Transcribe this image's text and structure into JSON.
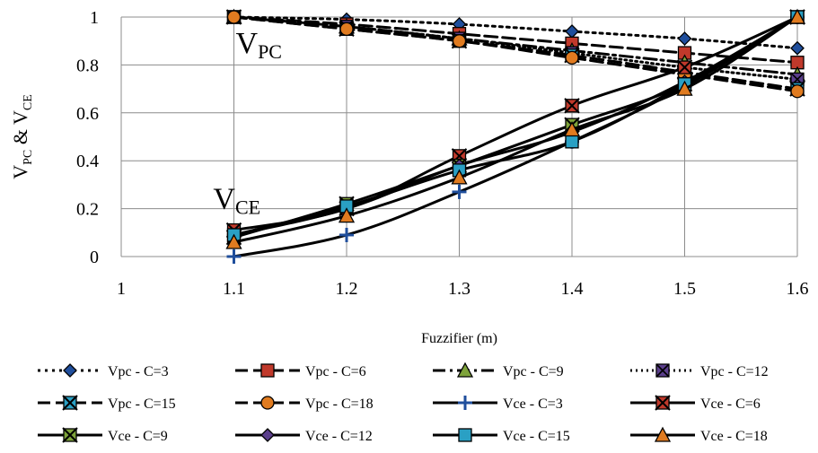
{
  "chart_data": {
    "type": "line",
    "xlabel": "Fuzzifier (m)",
    "ylabel": {
      "base1": "V",
      "sub1": "PC",
      "mid": " & ",
      "base2": "V",
      "sub2": "CE"
    },
    "xlim": [
      1,
      1.6
    ],
    "ylim": [
      0,
      1
    ],
    "x_ticks": [
      "1",
      "1.1",
      "1.2",
      "1.3",
      "1.4",
      "1.5",
      "1.6"
    ],
    "y_ticks": [
      "0",
      "0.2",
      "0.4",
      "0.6",
      "0.8",
      "1"
    ],
    "grid": true,
    "legend_position": "bottom",
    "annotations": [
      {
        "base": "V",
        "sub": "PC",
        "x": 1.1,
        "y": 0.88
      },
      {
        "base": "V",
        "sub": "CE",
        "x": 1.08,
        "y": 0.23
      }
    ],
    "x": [
      1.1,
      1.2,
      1.3,
      1.4,
      1.5,
      1.6
    ],
    "series": [
      {
        "name": "Vpc  - C=3",
        "values": [
          1,
          0.99,
          0.97,
          0.94,
          0.91,
          0.87
        ],
        "dash": "dot",
        "marker": "diamond",
        "marker_color": "#1f4e9c"
      },
      {
        "name": "Vpc  - C=6",
        "values": [
          1,
          0.97,
          0.93,
          0.89,
          0.85,
          0.81
        ],
        "dash": "dash",
        "marker": "square",
        "marker_color": "#c0392b"
      },
      {
        "name": "Vpc  - C=9",
        "values": [
          1,
          0.96,
          0.91,
          0.86,
          0.81,
          0.76
        ],
        "dash": "dashdot",
        "marker": "triangle",
        "marker_color": "#7ea33a"
      },
      {
        "name": "Vpc  - C=12",
        "values": [
          1,
          0.96,
          0.91,
          0.85,
          0.79,
          0.74
        ],
        "dash": "dotted",
        "marker": "xsquare",
        "marker_color": "#5b3f8c"
      },
      {
        "name": "Vpc  - C=15",
        "values": [
          1,
          0.95,
          0.9,
          0.84,
          0.77,
          0.7
        ],
        "dash": "dash",
        "marker": "xstar",
        "marker_color": "#2aa0c4"
      },
      {
        "name": "Vpc  - C=18",
        "values": [
          1,
          0.95,
          0.9,
          0.83,
          0.76,
          0.69
        ],
        "dash": "dash",
        "marker": "circle",
        "marker_color": "#e07b20"
      },
      {
        "name": "Vce  - C=3",
        "values": [
          0,
          0.09,
          0.27,
          0.48,
          0.71,
          1
        ],
        "dash": "solid",
        "marker": "plus",
        "marker_color": "#1f4e9c"
      },
      {
        "name": "Vce  - C=6",
        "values": [
          0.11,
          0.2,
          0.42,
          0.63,
          0.79,
          1
        ],
        "dash": "solid",
        "marker": "xstar",
        "marker_color": "#c0392b"
      },
      {
        "name": "Vce  - C=9",
        "values": [
          0.08,
          0.22,
          0.38,
          0.55,
          0.72,
          1
        ],
        "dash": "solid",
        "marker": "xstar",
        "marker_color": "#7ea33a"
      },
      {
        "name": "Vce  - C=12",
        "values": [
          0.09,
          0.2,
          0.38,
          0.52,
          0.73,
          1
        ],
        "dash": "solid",
        "marker": "diamond",
        "marker_color": "#5b3f8c"
      },
      {
        "name": "Vce  - C=15",
        "values": [
          0.09,
          0.21,
          0.36,
          0.48,
          0.72,
          1
        ],
        "dash": "solid",
        "marker": "square",
        "marker_color": "#2aa0c4"
      },
      {
        "name": "Vce  - C=18",
        "values": [
          0.06,
          0.17,
          0.33,
          0.53,
          0.7,
          1
        ],
        "dash": "solid",
        "marker": "triangle",
        "marker_color": "#e07b20"
      }
    ]
  }
}
